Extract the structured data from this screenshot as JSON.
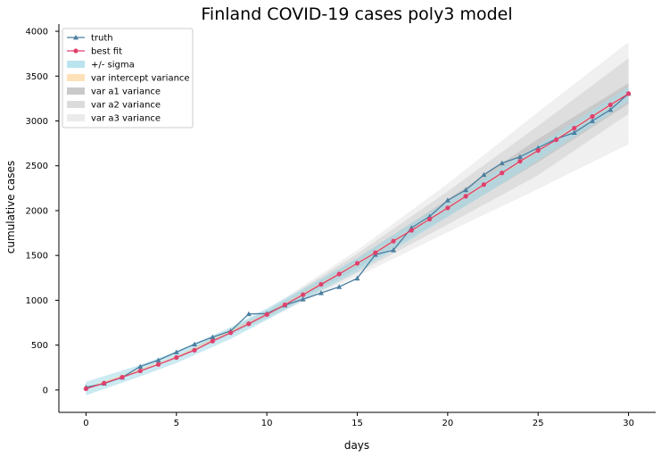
{
  "chart_data": {
    "type": "line",
    "title": "Finland COVID-19 cases poly3 model",
    "xlabel": "days",
    "ylabel": "cumulative cases",
    "xlim": [
      -1.5,
      31.5
    ],
    "ylim": [
      -250,
      4080
    ],
    "xticks": [
      0,
      5,
      10,
      15,
      20,
      25,
      30
    ],
    "yticks": [
      0,
      500,
      1000,
      1500,
      2000,
      2500,
      3000,
      3500,
      4000
    ],
    "grid": false,
    "legend_position": "top-left",
    "series": [
      {
        "name": "truth",
        "color": "#4a7fa0",
        "marker": "triangle",
        "x": [
          0,
          1,
          2,
          3,
          4,
          5,
          6,
          7,
          8,
          9,
          10,
          11,
          12,
          13,
          14,
          15,
          16,
          17,
          18,
          19,
          20,
          21,
          22,
          23,
          24,
          25,
          26,
          27,
          28,
          29,
          30
        ],
        "values": [
          30,
          72,
          140,
          262,
          332,
          422,
          510,
          590,
          658,
          848,
          852,
          945,
          1012,
          1082,
          1150,
          1245,
          1510,
          1560,
          1808,
          1935,
          2115,
          2230,
          2400,
          2530,
          2600,
          2700,
          2800,
          2870,
          3000,
          3125,
          3305
        ]
      },
      {
        "name": "best fit",
        "color": "#e0406c",
        "marker": "circle",
        "x": [
          0,
          1,
          2,
          3,
          4,
          5,
          6,
          7,
          8,
          9,
          10,
          11,
          12,
          13,
          14,
          15,
          16,
          17,
          18,
          19,
          20,
          21,
          22,
          23,
          24,
          25,
          26,
          27,
          28,
          29,
          30
        ],
        "values": [
          14,
          76,
          142,
          212,
          285,
          362,
          443,
          545,
          638,
          738,
          842,
          950,
          1062,
          1178,
          1293,
          1412,
          1531,
          1660,
          1780,
          1905,
          2030,
          2160,
          2290,
          2420,
          2550,
          2670,
          2790,
          2920,
          3050,
          3180,
          3305
        ]
      }
    ],
    "bands": [
      {
        "name": "+/- sigma",
        "color": "#a8dcea",
        "opacity": 0.6,
        "x": [
          0,
          3,
          5,
          8,
          10,
          13,
          15,
          18,
          20,
          23,
          25,
          28,
          30
        ],
        "lower": [
          -60,
          150,
          300,
          570,
          780,
          1110,
          1320,
          1680,
          1930,
          2300,
          2560,
          2950,
          3220
        ],
        "upper": [
          90,
          280,
          430,
          700,
          910,
          1240,
          1470,
          1860,
          2100,
          2490,
          2730,
          3120,
          3380
        ]
      },
      {
        "name": "var intercept variance",
        "color": "#ffd9a8",
        "opacity": 0.6,
        "x": [
          0,
          5,
          10,
          15,
          20,
          25,
          30
        ],
        "lower": [
          0,
          350,
          830,
          1400,
          2020,
          2660,
          3290
        ],
        "upper": [
          28,
          374,
          854,
          1424,
          2044,
          2684,
          3320
        ]
      },
      {
        "name": "var a1 variance",
        "color": "#b8b8b8",
        "opacity": 0.55,
        "x": [
          0,
          5,
          10,
          15,
          20,
          25,
          30
        ],
        "lower": [
          14,
          355,
          815,
          1355,
          1935,
          2540,
          3190
        ],
        "upper": [
          14,
          369,
          869,
          1469,
          2125,
          2800,
          3420
        ]
      },
      {
        "name": "var a2 variance",
        "color": "#cfcfcf",
        "opacity": 0.55,
        "x": [
          0,
          5,
          10,
          15,
          20,
          25,
          30
        ],
        "lower": [
          14,
          350,
          800,
          1305,
          1845,
          2395,
          3080
        ],
        "upper": [
          14,
          374,
          884,
          1519,
          2215,
          2945,
          3700
        ]
      },
      {
        "name": "var a3 variance",
        "color": "#e4e4e4",
        "opacity": 0.55,
        "x": [
          0,
          5,
          10,
          15,
          20,
          25,
          30
        ],
        "lower": [
          14,
          345,
          790,
          1265,
          1760,
          2240,
          2740
        ],
        "upper": [
          14,
          378,
          895,
          1560,
          2300,
          3100,
          3880
        ]
      }
    ]
  }
}
